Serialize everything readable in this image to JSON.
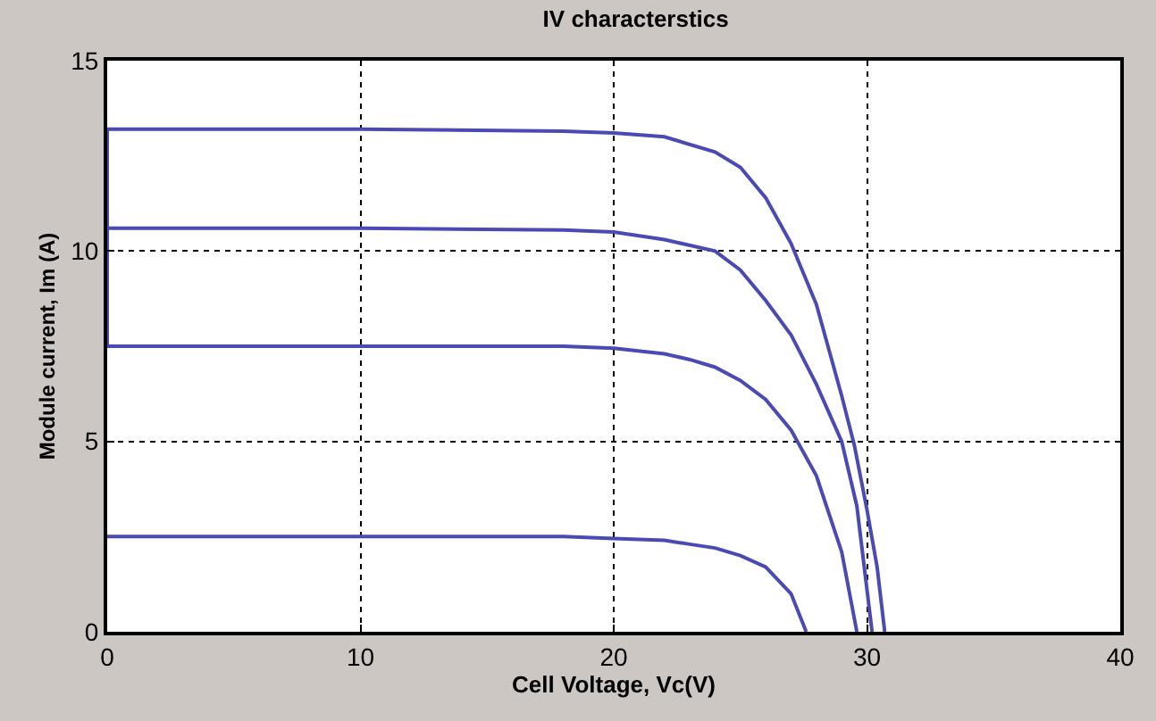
{
  "chart_data": {
    "type": "line",
    "title": "IV characterstics",
    "xlabel": "Cell Voltage, Vc(V)",
    "ylabel": "Module current, Im (A)",
    "xlim": [
      0,
      40
    ],
    "ylim": [
      0,
      15
    ],
    "xticks": [
      0,
      10,
      20,
      30,
      40
    ],
    "yticks": [
      0,
      5,
      10,
      15
    ],
    "grid": true,
    "marker": "none",
    "line_style": "solid",
    "series": [
      {
        "color": "#4a4ab4",
        "x": [
          0,
          10,
          18,
          20,
          22,
          24,
          25,
          26,
          27,
          28,
          29,
          29.5,
          30,
          30.4,
          30.7
        ],
        "values": [
          13.2,
          13.2,
          13.15,
          13.1,
          13.0,
          12.6,
          12.2,
          11.4,
          10.2,
          8.6,
          6.2,
          4.9,
          3.2,
          1.7,
          0
        ]
      },
      {
        "color": "#4a4ab4",
        "x": [
          0,
          0,
          10,
          18,
          20,
          22,
          24,
          25,
          26,
          27,
          28,
          29,
          29.6,
          30.2
        ],
        "values": [
          13.2,
          10.6,
          10.6,
          10.55,
          10.5,
          10.3,
          10.0,
          9.5,
          8.7,
          7.8,
          6.5,
          5.0,
          3.3,
          0
        ]
      },
      {
        "color": "#4a4ab4",
        "x": [
          0,
          0,
          10,
          18,
          20,
          22,
          23,
          24,
          25,
          26,
          27,
          28,
          29,
          29.6
        ],
        "values": [
          10.6,
          7.5,
          7.5,
          7.5,
          7.45,
          7.3,
          7.15,
          6.95,
          6.6,
          6.1,
          5.3,
          4.1,
          2.1,
          0
        ]
      },
      {
        "color": "#4a4ab4",
        "x": [
          0,
          10,
          18,
          20,
          22,
          23,
          24,
          25,
          26,
          27,
          27.6
        ],
        "values": [
          2.5,
          2.5,
          2.5,
          2.45,
          2.4,
          2.3,
          2.2,
          2.0,
          1.7,
          1.0,
          0
        ]
      }
    ]
  }
}
